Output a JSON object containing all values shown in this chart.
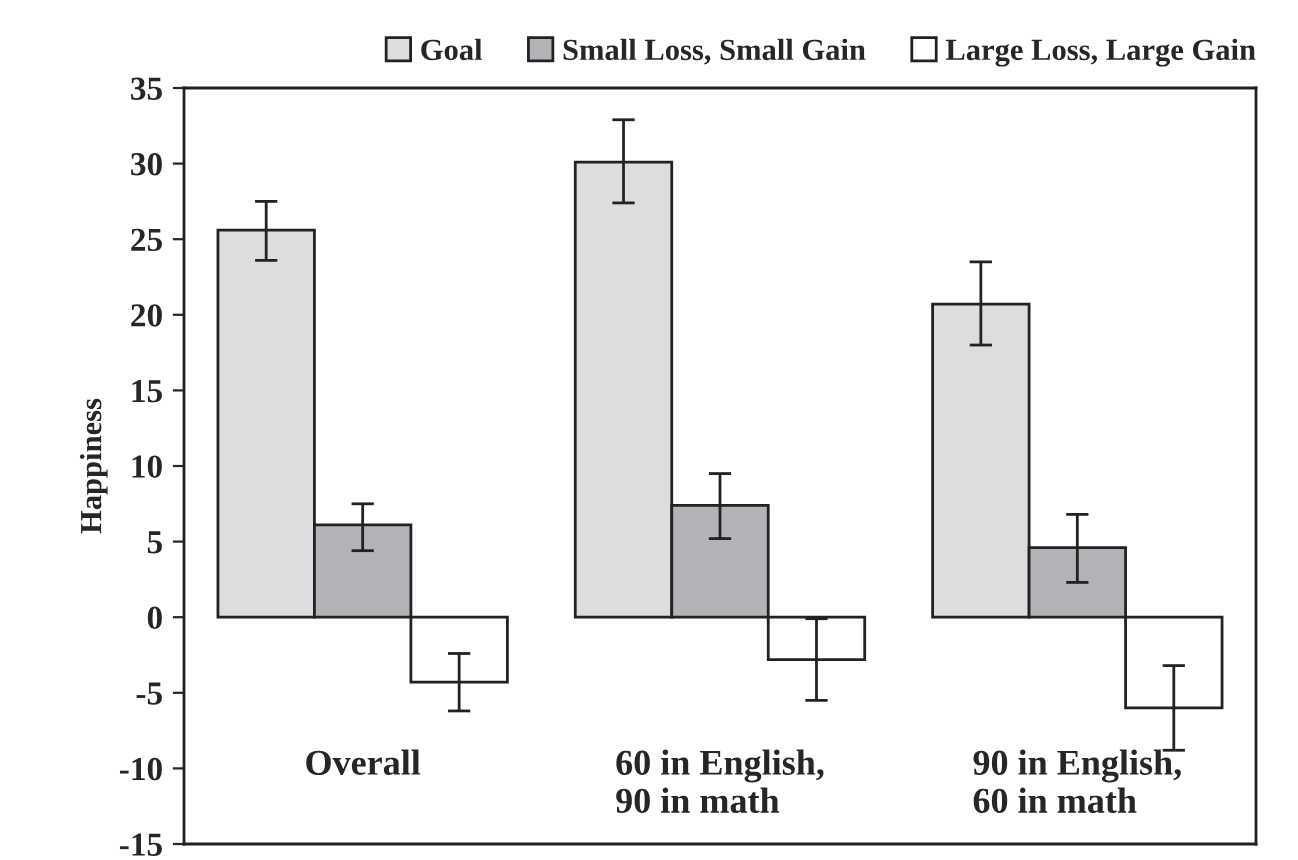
{
  "chart_data": {
    "type": "bar",
    "categories": [
      "Overall",
      "60 in English,\n90 in math",
      "90 in English,\n60 in math"
    ],
    "ylabel": "Happiness",
    "ylim": [
      -15,
      35
    ],
    "yticks": [
      -15,
      -10,
      -5,
      0,
      5,
      10,
      15,
      20,
      25,
      30,
      35
    ],
    "grid": false,
    "legend": "top right",
    "series": [
      {
        "name": "Goal",
        "color": "#dcdddf",
        "values": [
          25.6,
          30.1,
          20.7
        ],
        "errors": [
          [
            23.6,
            27.5
          ],
          [
            27.4,
            32.9
          ],
          [
            18.0,
            23.5
          ]
        ]
      },
      {
        "name": "Small Loss, Small Gain",
        "color": "#b2b3b6",
        "values": [
          6.1,
          7.4,
          4.6
        ],
        "errors": [
          [
            4.4,
            7.5
          ],
          [
            5.2,
            9.5
          ],
          [
            2.3,
            6.8
          ]
        ]
      },
      {
        "name": "Large Loss, Large Gain",
        "color": "#ffffff",
        "values": [
          -4.3,
          -2.8,
          -6.0
        ],
        "errors": [
          [
            -6.2,
            -2.4
          ],
          [
            -5.5,
            -0.1
          ],
          [
            -8.8,
            -3.2
          ]
        ]
      }
    ]
  }
}
